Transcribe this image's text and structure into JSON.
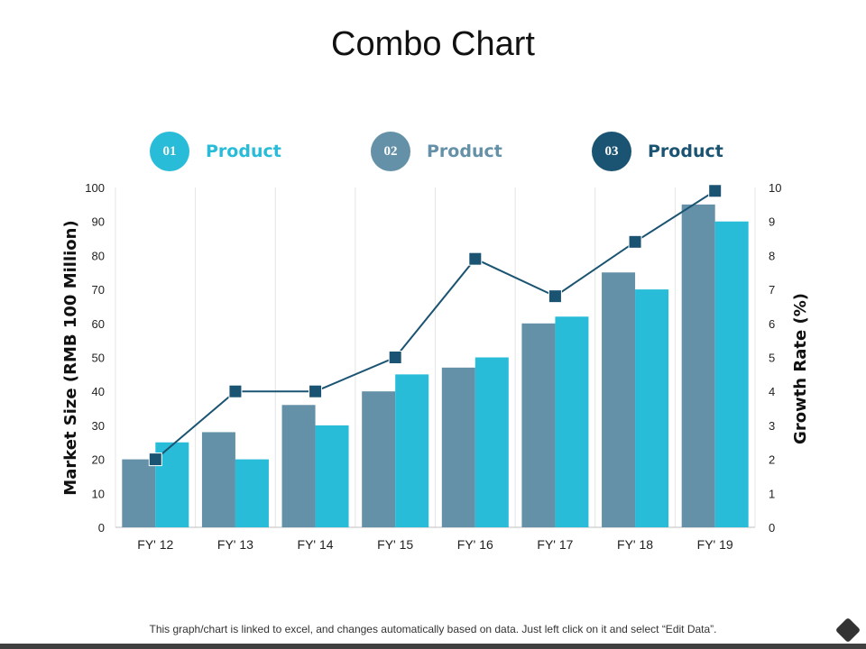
{
  "title": "Combo Chart",
  "legend": [
    {
      "badge": "01",
      "label": "Product",
      "color": "#28BCD8"
    },
    {
      "badge": "02",
      "label": "Product",
      "color": "#6491A8"
    },
    {
      "badge": "03",
      "label": "Product",
      "color": "#1B5472"
    }
  ],
  "chart_data": {
    "type": "bar+line",
    "categories": [
      "FY' 12",
      "FY' 13",
      "FY' 14",
      "FY' 15",
      "FY' 16",
      "FY' 17",
      "FY' 18",
      "FY' 19"
    ],
    "series": [
      {
        "name": "Product 02",
        "type": "bar",
        "axis": "left",
        "color": "#6491A8",
        "values": [
          20,
          28,
          36,
          40,
          47,
          60,
          75,
          95
        ]
      },
      {
        "name": "Product 01",
        "type": "bar",
        "axis": "left",
        "color": "#28BCD8",
        "values": [
          25,
          20,
          30,
          45,
          50,
          62,
          70,
          90
        ]
      },
      {
        "name": "Product 03",
        "type": "line",
        "axis": "right",
        "color": "#1B5472",
        "values": [
          2,
          4,
          4,
          5,
          7.9,
          6.8,
          8.4,
          9.9
        ]
      }
    ],
    "ylabel_left": "Market Size (RMB 100 Million)",
    "ylabel_right": "Growth Rate (%)",
    "ylim_left": [
      0,
      100
    ],
    "ylim_right": [
      0,
      10
    ],
    "yticks_left": [
      "0",
      "10",
      "20",
      "30",
      "40",
      "50",
      "60",
      "70",
      "80",
      "90",
      "100"
    ],
    "yticks_right": [
      "0",
      "1",
      "2",
      "3",
      "4",
      "5",
      "6",
      "7",
      "8",
      "9",
      "10"
    ],
    "grid": "vertical"
  },
  "footnote": "This graph/chart is linked to excel, and changes automatically based on data. Just left click on it and select “Edit Data”.",
  "icons": {
    "corner": "diamond-icon"
  },
  "colors": {
    "axis_text": "#222222",
    "grid": "#E4E4E4",
    "baseline": "#BFBFBF",
    "bottom_bar": "#404040"
  }
}
